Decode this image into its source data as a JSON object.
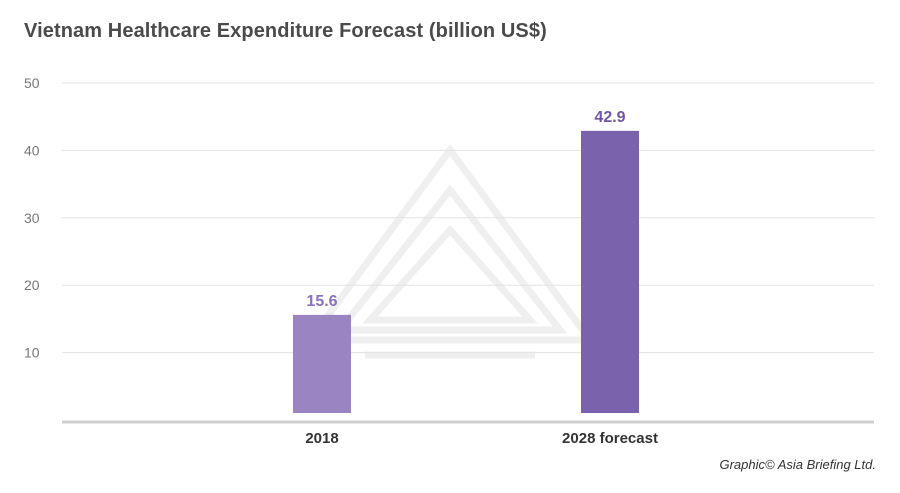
{
  "header": {
    "title": "Vietnam Healthcare Expenditure Forecast (billion US$)"
  },
  "footer": {
    "credit": "Graphic© Asia Briefing Ltd."
  },
  "chart_data": {
    "type": "bar",
    "title": "Vietnam Healthcare Expenditure Forecast (billion US$)",
    "xlabel": "",
    "ylabel": "",
    "categories": [
      "2018",
      "2028 forecast"
    ],
    "values": [
      15.6,
      42.9
    ],
    "data_labels": [
      "15.6",
      "42.9"
    ],
    "ylim": [
      0,
      50
    ],
    "yticks": [
      10,
      20,
      30,
      40,
      50
    ],
    "grid": true,
    "legend": "none",
    "colors": {
      "bars": [
        "#9a84c2",
        "#7b62ad"
      ],
      "data_labels": [
        "#8a71bb",
        "#6f56a3"
      ],
      "grid": "#e3e3e3",
      "axis": "#d0d0d0",
      "tick_text": "#777777",
      "category_text": "#333333"
    }
  }
}
